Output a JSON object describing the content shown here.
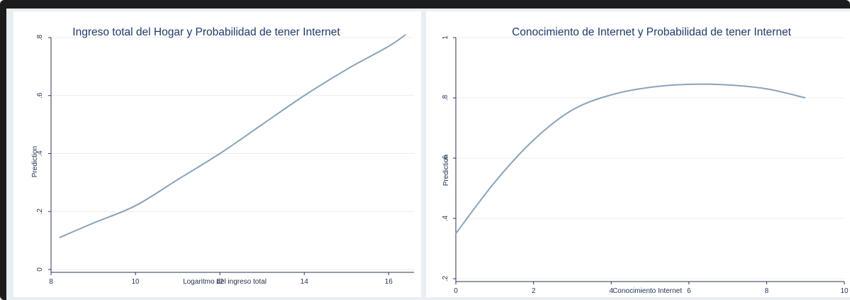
{
  "chart_data": [
    {
      "type": "line",
      "title": "Ingreso total del Hogar y Probabilidad de tener Internet",
      "xlabel": "Logaritmo del ingreso total",
      "ylabel": "Prediction",
      "xlim": [
        8,
        16.6
      ],
      "ylim": [
        0,
        0.8
      ],
      "x_ticks": [
        8,
        10,
        12,
        14,
        16
      ],
      "x_tick_labels": [
        "8",
        "10",
        "12",
        "14",
        "16"
      ],
      "y_ticks": [
        0,
        0.2,
        0.4,
        0.6,
        0.8
      ],
      "y_tick_labels": [
        "0",
        ".2",
        ".4",
        ".6",
        ".8"
      ],
      "grid": true,
      "series": [
        {
          "x": [
            8.2,
            9,
            10,
            11,
            12,
            13,
            14,
            15,
            16,
            16.4
          ],
          "y": [
            0.11,
            0.16,
            0.22,
            0.31,
            0.4,
            0.5,
            0.6,
            0.69,
            0.77,
            0.81
          ]
        }
      ]
    },
    {
      "type": "line",
      "title": "Conocimiento de Internet y Probabilidad de tener Internet",
      "xlabel": "Conocimiento Internet",
      "ylabel": "Prediction",
      "xlim": [
        0,
        10
      ],
      "ylim": [
        0.2,
        1
      ],
      "x_ticks": [
        0,
        2,
        4,
        6,
        8,
        10
      ],
      "x_tick_labels": [
        "0",
        "2",
        "4",
        "6",
        "8",
        "10"
      ],
      "y_ticks": [
        0.2,
        0.4,
        0.6,
        0.8,
        1
      ],
      "y_tick_labels": [
        ".2",
        ".4",
        ".6",
        ".8",
        "1"
      ],
      "grid": true,
      "series": [
        {
          "x": [
            0,
            1,
            2,
            3,
            4,
            5,
            6,
            7,
            8,
            9
          ],
          "y": [
            0.35,
            0.52,
            0.66,
            0.76,
            0.81,
            0.835,
            0.845,
            0.843,
            0.83,
            0.8
          ]
        }
      ]
    }
  ]
}
